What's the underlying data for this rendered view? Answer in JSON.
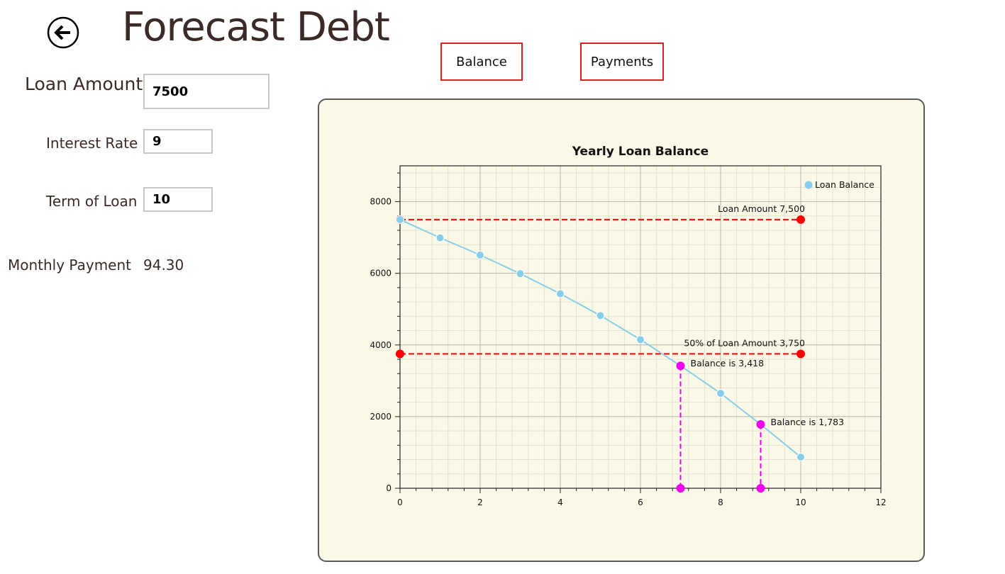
{
  "header": {
    "title": "Forecast Debt",
    "back_icon": "back-arrow-icon"
  },
  "tabs": [
    {
      "label": "Balance"
    },
    {
      "label": "Payments"
    }
  ],
  "form": {
    "loan_amount_label": "Loan Amount",
    "loan_amount_value": "7500",
    "interest_rate_label": "Interest Rate",
    "interest_rate_value": "9",
    "term_label": "Term of Loan",
    "term_value": "10",
    "monthly_payment_label": "Monthly Payment",
    "monthly_payment_value": "94.30"
  },
  "colors": {
    "accent_red": "#e02020",
    "series": "#87ceeb",
    "marker_red": "#ff0000",
    "marker_magenta": "#ee00ee",
    "panel_bg": "#fbf8e8"
  },
  "chart_data": {
    "type": "line",
    "title": "Yearly Loan Balance",
    "xlabel": "",
    "ylabel": "",
    "xlim": [
      0,
      12
    ],
    "ylim": [
      0,
      9000
    ],
    "xticks": [
      0,
      2,
      4,
      6,
      8,
      10,
      12
    ],
    "yticks": [
      0,
      2000,
      4000,
      6000,
      8000
    ],
    "grid": true,
    "legend_position": "top-right",
    "series": [
      {
        "name": "Loan Balance",
        "x": [
          0,
          1,
          2,
          3,
          4,
          5,
          6,
          7,
          8,
          9,
          10
        ],
        "y": [
          7500,
          6990,
          6510,
          5990,
          5430,
          4820,
          4150,
          3418,
          2650,
          1783,
          870
        ]
      }
    ],
    "reference_lines": [
      {
        "label": "Loan Amount 7,500",
        "x": [
          0,
          10
        ],
        "y": 7500
      },
      {
        "label": "50% of Loan Amount 3,750",
        "x": [
          0,
          10
        ],
        "y": 3750
      }
    ],
    "annotations": [
      {
        "label": "Balance is 3,418",
        "x": 7,
        "y": 3418
      },
      {
        "label": "Balance is 1,783",
        "x": 9,
        "y": 1783
      }
    ]
  }
}
